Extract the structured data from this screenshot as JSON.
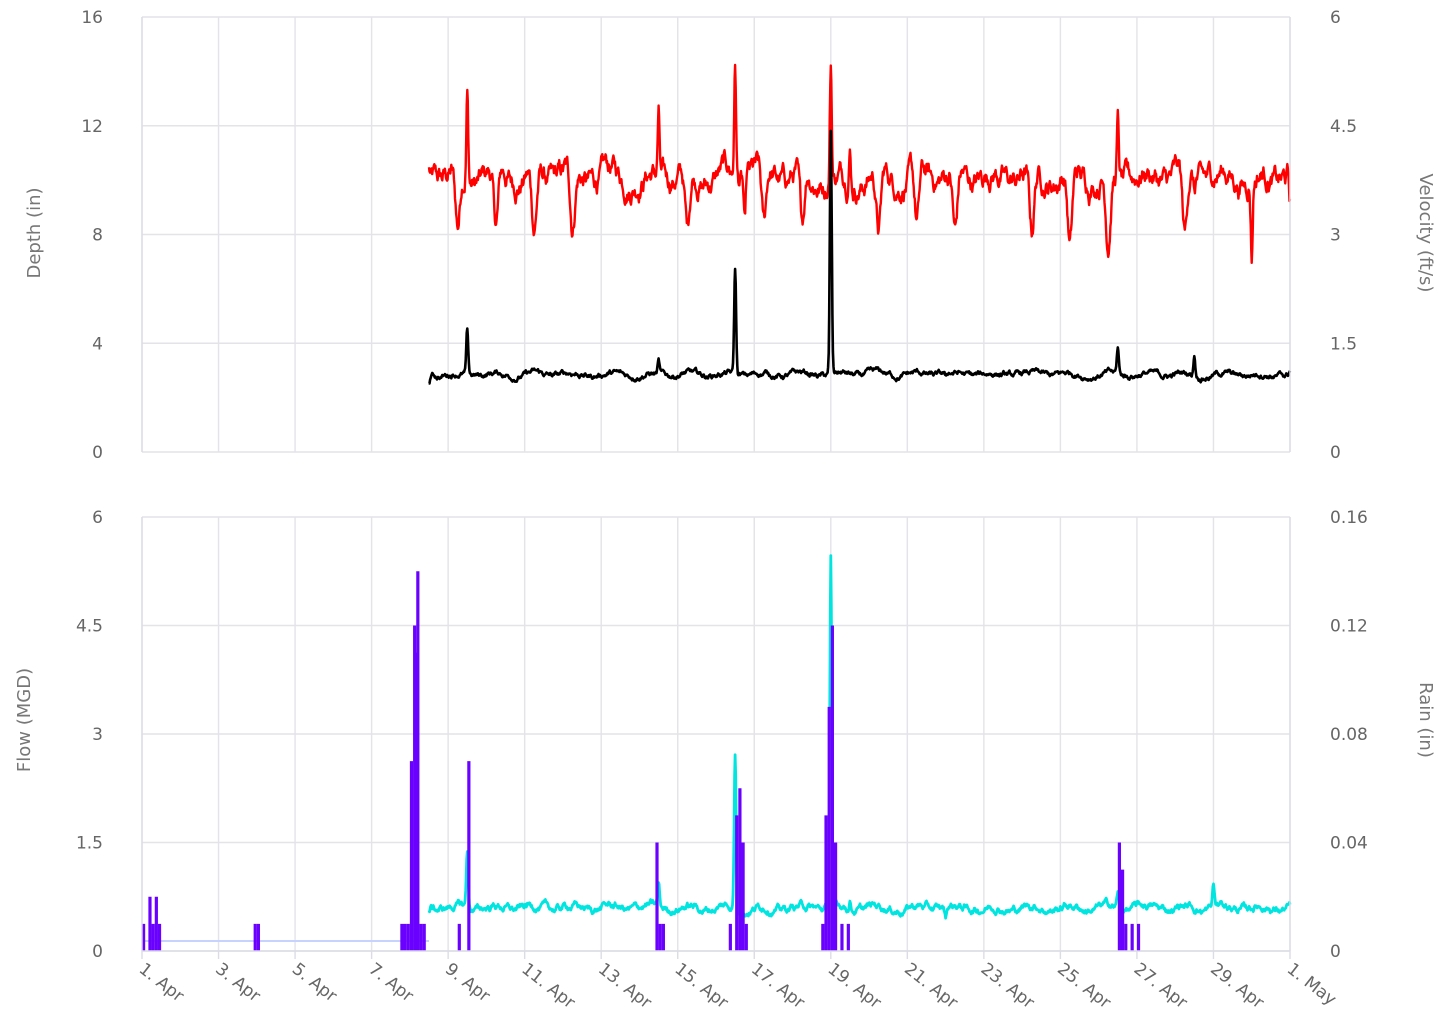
{
  "chart_data": [
    {
      "type": "line",
      "panel": "top",
      "ylabel": "Depth (in)",
      "ylabel_right": "Velocity (ft/s)",
      "ylim": [
        0,
        16
      ],
      "ylim_right": [
        0,
        6
      ],
      "yticks": [
        "0",
        "4",
        "8",
        "12",
        "16"
      ],
      "yticks_right": [
        "0",
        "1.5",
        "3",
        "4.5",
        "6"
      ],
      "grid": true,
      "x_range": [
        "2023-04-01",
        "2023-05-01"
      ],
      "series": [
        {
          "axis": "right",
          "color": "#ff0000",
          "baseline": 3.8,
          "points": [
            [
              "04-08 12:00",
              3.9
            ],
            [
              "04-09 12:00",
              5.05
            ],
            [
              "04-14 12:00",
              4.65
            ],
            [
              "04-16 12:00",
              5.35
            ],
            [
              "04-16 18:00",
              3.1
            ],
            [
              "04-19 00:00",
              5.45
            ],
            [
              "04-19 12:00",
              4.3
            ],
            [
              "04-26 12:00",
              4.6
            ],
            [
              "04-28 12:00",
              3.6
            ],
            [
              "04-30 00:00",
              2.8
            ],
            [
              "05-01 00:00",
              3.4
            ]
          ],
          "dips": [
            [
              "04-09 06:00",
              3.0
            ],
            [
              "04-10 06:00",
              3.0
            ],
            [
              "04-11 06:00",
              3.0
            ],
            [
              "04-12 06:00",
              3.0
            ],
            [
              "04-15 06:00",
              3.0
            ],
            [
              "04-17 06:00",
              2.95
            ],
            [
              "04-18 06:00",
              3.0
            ],
            [
              "04-20 06:00",
              3.0
            ],
            [
              "04-21 06:00",
              3.05
            ],
            [
              "04-22 06:00",
              2.95
            ],
            [
              "04-24 06:00",
              2.9
            ],
            [
              "04-25 06:00",
              2.8
            ],
            [
              "04-26 06:00",
              2.9
            ],
            [
              "04-28 06:00",
              2.85
            ]
          ]
        },
        {
          "axis": "left",
          "color": "#000000",
          "baseline": 2.85,
          "points": [
            [
              "04-08 12:00",
              2.5
            ],
            [
              "04-09 12:00",
              4.4
            ],
            [
              "04-14 12:00",
              3.3
            ],
            [
              "04-16 12:00",
              6.7
            ],
            [
              "04-19 00:00",
              11.7
            ],
            [
              "04-22 00:00",
              2.7
            ],
            [
              "04-26 12:00",
              3.8
            ],
            [
              "04-28 12:00",
              3.6
            ],
            [
              "05-01 00:00",
              3.0
            ]
          ]
        }
      ]
    },
    {
      "type": "bar+line",
      "panel": "bottom",
      "ylabel": "Flow (MGD)",
      "ylabel_right": "Rain (in)",
      "ylim": [
        0,
        6
      ],
      "ylim_right": [
        0,
        0.16
      ],
      "yticks": [
        "0",
        "1.5",
        "3",
        "4.5",
        "6"
      ],
      "yticks_right": [
        "0",
        "0.04",
        "0.08",
        "0.12",
        "0.16"
      ],
      "grid": true,
      "xticks": [
        "1. Apr",
        "3. Apr",
        "5. Apr",
        "7. Apr",
        "9. Apr",
        "11. Apr",
        "13. Apr",
        "15. Apr",
        "17. Apr",
        "19. Apr",
        "21. Apr",
        "23. Apr",
        "25. Apr",
        "27. Apr",
        "29. Apr",
        "1. May"
      ],
      "rain": {
        "color": "#6a00ff",
        "baseline_color": "#c7d2ff",
        "bars": [
          [
            "04-01 00:00",
            0.01
          ],
          [
            "04-01 04:00",
            0.02
          ],
          [
            "04-01 06:00",
            0.01
          ],
          [
            "04-01 08:00",
            0.02
          ],
          [
            "04-01 10:00",
            0.01
          ],
          [
            "04-03 22:00",
            0.01
          ],
          [
            "04-04 00:00",
            0.01
          ],
          [
            "04-07 18:00",
            0.01
          ],
          [
            "04-07 20:00",
            0.01
          ],
          [
            "04-07 22:00",
            0.01
          ],
          [
            "04-08 00:00",
            0.07
          ],
          [
            "04-08 02:00",
            0.12
          ],
          [
            "04-08 03:00",
            0.11
          ],
          [
            "04-08 04:00",
            0.14
          ],
          [
            "04-08 06:00",
            0.01
          ],
          [
            "04-08 08:00",
            0.01
          ],
          [
            "04-09 06:00",
            0.01
          ],
          [
            "04-09 12:00",
            0.07
          ],
          [
            "04-14 10:00",
            0.04
          ],
          [
            "04-14 12:00",
            0.01
          ],
          [
            "04-14 14:00",
            0.01
          ],
          [
            "04-16 08:00",
            0.01
          ],
          [
            "04-16 12:00",
            0.05
          ],
          [
            "04-16 14:00",
            0.06
          ],
          [
            "04-16 16:00",
            0.04
          ],
          [
            "04-16 18:00",
            0.01
          ],
          [
            "04-18 18:00",
            0.01
          ],
          [
            "04-18 20:00",
            0.05
          ],
          [
            "04-18 22:00",
            0.09
          ],
          [
            "04-19 00:00",
            0.12
          ],
          [
            "04-19 02:00",
            0.04
          ],
          [
            "04-19 06:00",
            0.01
          ],
          [
            "04-19 10:00",
            0.01
          ],
          [
            "04-26 12:00",
            0.04
          ],
          [
            "04-26 14:00",
            0.03
          ],
          [
            "04-26 16:00",
            0.01
          ],
          [
            "04-26 20:00",
            0.01
          ],
          [
            "04-27 00:00",
            0.01
          ]
        ]
      },
      "flow": {
        "color": "#00e5e0",
        "baseline": 0.6,
        "points": [
          [
            "04-08 12:00",
            0.55
          ],
          [
            "04-09 12:00",
            1.4
          ],
          [
            "04-14 12:00",
            0.9
          ],
          [
            "04-16 12:00",
            2.75
          ],
          [
            "04-19 00:00",
            5.45
          ],
          [
            "04-19 12:00",
            0.7
          ],
          [
            "04-22 00:00",
            0.45
          ],
          [
            "04-26 12:00",
            0.8
          ],
          [
            "04-29 00:00",
            0.9
          ],
          [
            "05-01 00:00",
            0.6
          ]
        ]
      }
    }
  ]
}
